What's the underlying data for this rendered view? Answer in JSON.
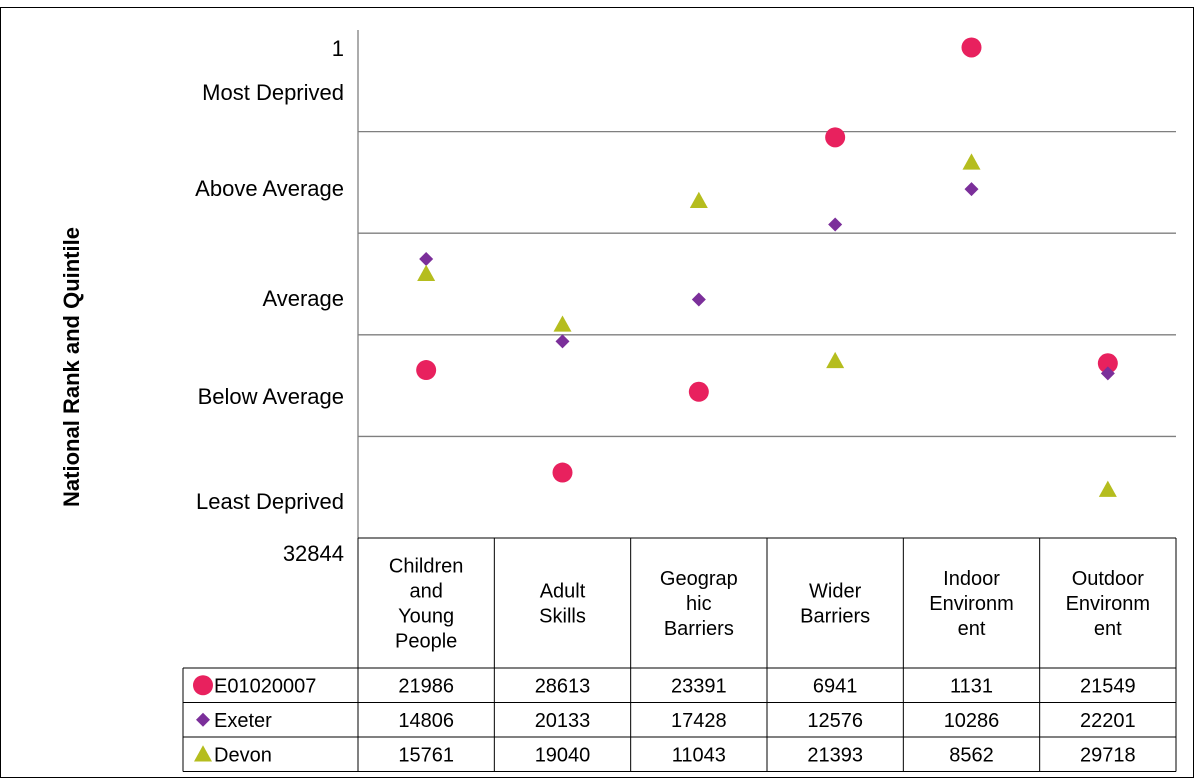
{
  "chart_data": {
    "type": "scatter",
    "ylabel": "National Rank and Quintile",
    "y_axis": {
      "min": 1,
      "max": 32844,
      "inverted": true,
      "top_label": "1",
      "bottom_label": "32844",
      "quintiles": [
        6570,
        13139,
        19708,
        26277
      ],
      "quintile_labels": [
        "Most Deprived",
        "Above Average",
        "Average",
        "Below Average",
        "Least Deprived"
      ]
    },
    "categories": [
      "Children and Young People",
      "Adult Skills",
      "Geographic Barriers",
      "Wider Barriers",
      "Indoor Environment",
      "Outdoor Environment"
    ],
    "category_lines": [
      [
        "Children",
        "and",
        "Young",
        "People"
      ],
      [
        "Adult",
        "Skills"
      ],
      [
        "Geograp",
        "hic",
        "Barriers"
      ],
      [
        "Wider",
        "Barriers"
      ],
      [
        "Indoor",
        "Environm",
        "ent"
      ],
      [
        "Outdoor",
        "Environm",
        "ent"
      ]
    ],
    "series": [
      {
        "name": "E01020007",
        "marker": "circle",
        "color": "#e8215e",
        "values": [
          21986,
          28613,
          23391,
          6941,
          1131,
          21549
        ]
      },
      {
        "name": "Exeter",
        "marker": "diamond",
        "color": "#7b2f9a",
        "values": [
          14806,
          20133,
          17428,
          12576,
          10286,
          22201
        ]
      },
      {
        "name": "Devon",
        "marker": "triangle",
        "color": "#b5bd1e",
        "values": [
          15761,
          19040,
          11043,
          21393,
          8562,
          29718
        ]
      }
    ],
    "grid": true,
    "legend": "data-table"
  }
}
